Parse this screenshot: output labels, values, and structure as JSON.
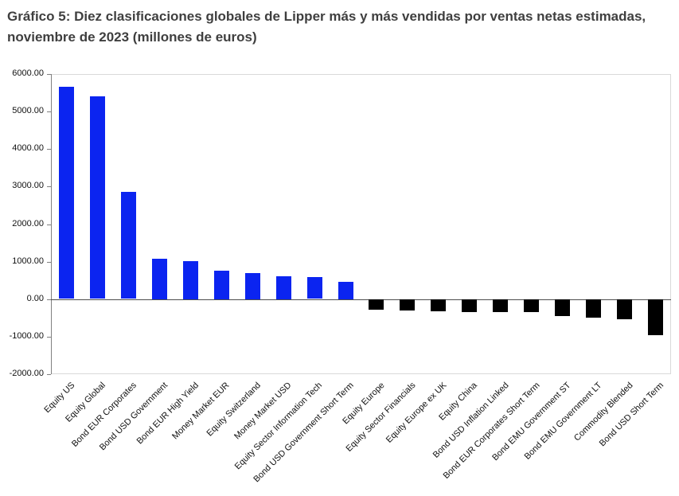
{
  "chart_data": {
    "type": "bar",
    "title": "Gráfico 5: Diez clasificaciones globales de Lipper más y más vendidas por ventas netas estimadas, noviembre de 2023 (millones de euros)",
    "categories": [
      "Equity US",
      "Equity Global",
      "Bond EUR Corporates",
      "Bond USD Government",
      "Bond EUR High Yield",
      "Money Market EUR",
      "Equity Switzerland",
      "Money Market USD",
      "Equity Sector Information Tech",
      "Bond USD Government Short Term",
      "Equity Europe",
      "Equity Sector Financials",
      "Equity Europe ex UK",
      "Equity China",
      "Bond USD Inflation Linked",
      "Bond EUR Corporates Short Term",
      "Bond EMU Government ST",
      "Bond EMU Government LT",
      "Commodity Blended",
      "Bond USD Short Term"
    ],
    "values": [
      5650,
      5400,
      2850,
      1080,
      1010,
      760,
      700,
      610,
      580,
      460,
      -280,
      -300,
      -320,
      -350,
      -330,
      -340,
      -450,
      -480,
      -530,
      -960
    ],
    "xlabel": "",
    "ylabel": "",
    "ylim": [
      -2000,
      6000
    ],
    "yticks": [
      6000,
      5000,
      4000,
      3000,
      2000,
      1000,
      0,
      -1000,
      -2000
    ],
    "ytick_decimals": 2,
    "grid": false,
    "legend": "none",
    "colors": {
      "positive": "#0b24f0",
      "negative": "#000000",
      "axis": "#808080",
      "border": "#d9d9d9",
      "zero_line": "#4d4d4d",
      "label": "#111111"
    }
  }
}
